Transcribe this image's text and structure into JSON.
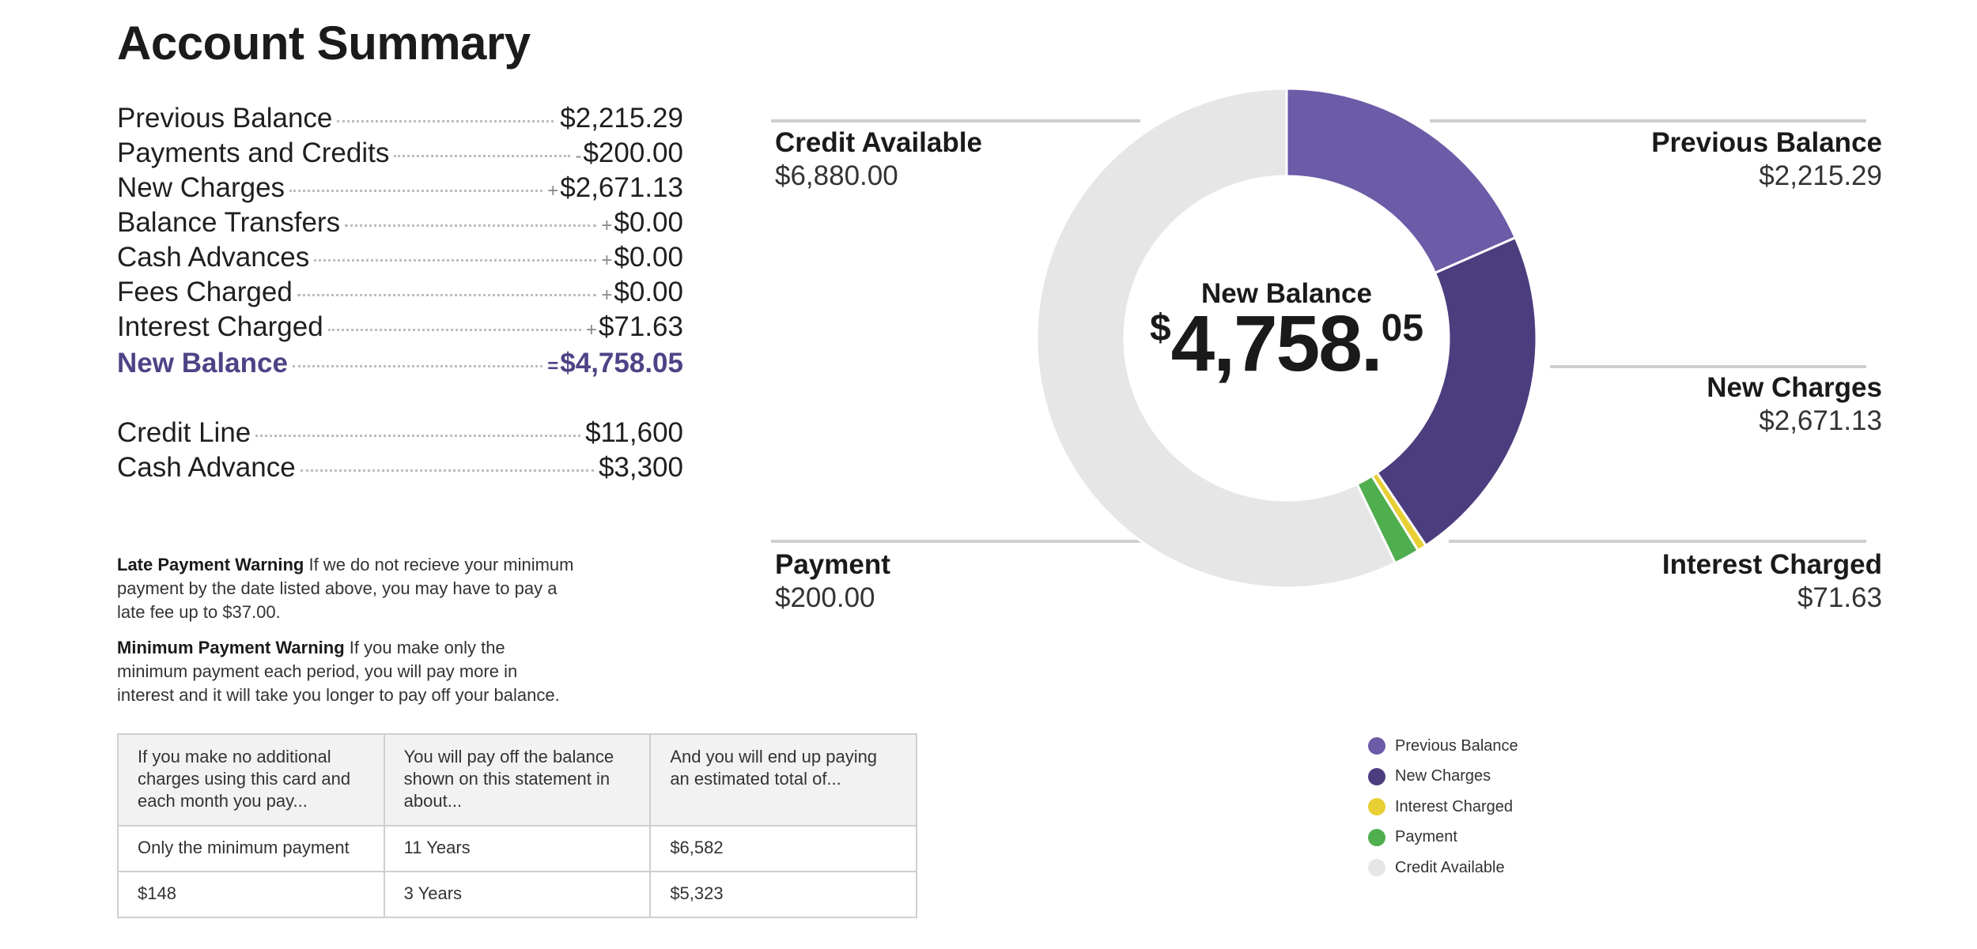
{
  "title": "Account Summary",
  "summary": [
    {
      "label": "Previous Balance",
      "op": "",
      "amount": "$2,215.29"
    },
    {
      "label": "Payments and Credits",
      "op": "-",
      "amount": "$200.00"
    },
    {
      "label": "New Charges",
      "op": "+",
      "amount": "$2,671.13"
    },
    {
      "label": "Balance Transfers",
      "op": "+",
      "amount": "$0.00"
    },
    {
      "label": "Cash Advances",
      "op": "+",
      "amount": "$0.00"
    },
    {
      "label": "Fees Charged",
      "op": "+",
      "amount": "$0.00"
    },
    {
      "label": "Interest Charged",
      "op": "+",
      "amount": "$71.63"
    },
    {
      "label": "New Balance",
      "op": "=",
      "amount": "$4,758.05"
    }
  ],
  "limits": [
    {
      "label": "Credit Line",
      "amount": "$11,600"
    },
    {
      "label": "Cash Advance",
      "amount": "$3,300"
    }
  ],
  "warnings": [
    {
      "title": "Late Payment Warning",
      "text": "If we do not recieve your minimum payment by the date listed above, you may have to pay a late fee up to $37.00."
    },
    {
      "title": "Minimum Payment Warning",
      "text": "If you make only the minimum payment each period, you will pay more in interest and it will take you longer to pay off your balance."
    }
  ],
  "payoff_table": {
    "headers": [
      "If you make no additional charges using this card and each month you pay...",
      "You will pay off the balance shown on this statement in about...",
      "And you will end up paying an estimated total of..."
    ],
    "rows": [
      [
        "Only the minimum payment",
        "11 Years",
        "$6,582"
      ],
      [
        "$148",
        "3 Years",
        "$5,323"
      ]
    ]
  },
  "center": {
    "label": "New Balance",
    "currency": "$",
    "whole": "4,758.",
    "cents": "05"
  },
  "chart_data": {
    "type": "pie",
    "series": [
      {
        "name": "Previous Balance",
        "value": 2215.29,
        "display": "$2,215.29",
        "color": "#6c5ba7"
      },
      {
        "name": "New Charges",
        "value": 2671.13,
        "display": "$2,671.13",
        "color": "#4c3d7e"
      },
      {
        "name": "Interest Charged",
        "value": 71.63,
        "display": "$71.63",
        "color": "#e8cf33"
      },
      {
        "name": "Payment",
        "value": 200.0,
        "display": "$200.00",
        "color": "#4fae4d"
      },
      {
        "name": "Credit Available",
        "value": 6880.0,
        "display": "$6,880.00",
        "color": "#e6e6e6"
      }
    ],
    "legend_position": "bottom-right"
  }
}
